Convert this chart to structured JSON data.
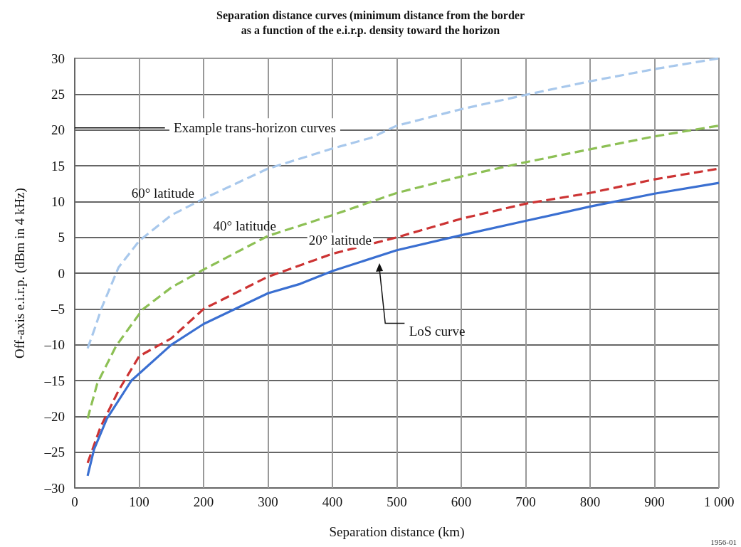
{
  "chart_data": {
    "type": "line",
    "title": "Separation distance curves (minimum distance from the border\nas a function of the e.i.r.p. density toward the horizon",
    "xlabel": "Separation distance (km)",
    "ylabel": "Off-axis e.i.r.p. (dBm in 4 kHz)",
    "annotations": [
      "Example trans-horizon curves",
      "1956-01",
      "LoS curve"
    ],
    "xlim": [
      0,
      1000
    ],
    "xticks": [
      0,
      100,
      200,
      300,
      400,
      500,
      600,
      700,
      800,
      900,
      {
        "value": 1000,
        "label": "1 000"
      }
    ],
    "ylim": [
      -30,
      30
    ],
    "yticks": [
      {
        "value": -30,
        "label": "–30"
      },
      {
        "value": -25,
        "label": "–25"
      },
      {
        "value": -20,
        "label": "–20"
      },
      {
        "value": -15,
        "label": "–15"
      },
      {
        "value": -10,
        "label": "–10"
      },
      {
        "value": -5,
        "label": "–5"
      },
      0,
      5,
      10,
      15,
      20,
      25,
      30
    ],
    "grid": true,
    "legend": false,
    "marker": "none",
    "series": [
      {
        "name": "60° latitude",
        "color": "#a8c8ec",
        "line_style": "dashed",
        "x": [
          20,
          30,
          42,
          68,
          100,
          150,
          200,
          300,
          400,
          460,
          500,
          600,
          700,
          800,
          900,
          1000
        ],
        "values": [
          -10.5,
          -8,
          -4.8,
          0.8,
          4.5,
          8.1,
          10.4,
          14.6,
          17.4,
          18.9,
          20.6,
          22.9,
          24.9,
          26.8,
          28.5,
          30
        ]
      },
      {
        "name": "40° latitude",
        "color": "#8dc055",
        "line_style": "dashed",
        "x": [
          20,
          35,
          64,
          105,
          150,
          200,
          300,
          400,
          500,
          600,
          700,
          800,
          900,
          1000
        ],
        "values": [
          -20.3,
          -15.4,
          -10.2,
          -5.1,
          -2,
          0.5,
          5.2,
          8.1,
          11.2,
          13.5,
          15.5,
          17.3,
          19.1,
          20.6
        ]
      },
      {
        "name": "20° latitude",
        "color": "#cc3333",
        "line_style": "dashed",
        "x": [
          20,
          40,
          68,
          100,
          150,
          200,
          300,
          400,
          500,
          600,
          700,
          800,
          900,
          1000
        ],
        "values": [
          -26.5,
          -21.5,
          -16.4,
          -11.6,
          -9.1,
          -5,
          -0.5,
          2.7,
          5,
          7.6,
          9.7,
          11.2,
          13.1,
          14.6
        ]
      },
      {
        "color": "#3a6fd1",
        "line_style": "solid",
        "x": [
          20,
          30,
          50,
          88,
          150,
          200,
          300,
          350,
          400,
          500,
          600,
          700,
          800,
          900,
          1000
        ],
        "values": [
          -28.3,
          -24.6,
          -20.3,
          -15,
          -10,
          -7.1,
          -2.8,
          -1.5,
          0.3,
          3.2,
          5.3,
          7.3,
          9.3,
          11.1,
          12.6
        ]
      }
    ]
  }
}
